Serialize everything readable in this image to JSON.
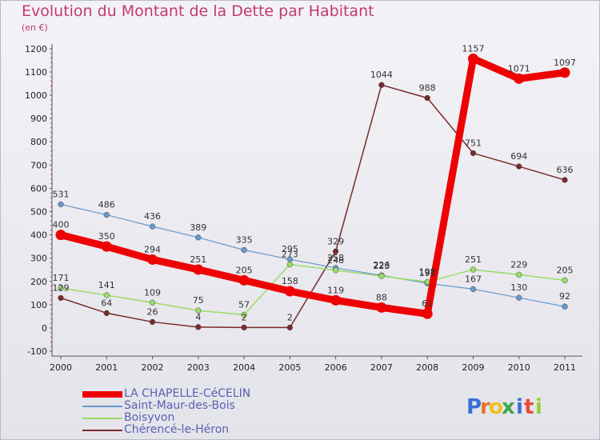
{
  "chart_data": {
    "type": "line",
    "title": "Evolution du Montant de la Dette par Habitant",
    "subtitle": "(en €)",
    "x": [
      "2000",
      "2001",
      "2002",
      "2003",
      "2004",
      "2005",
      "2006",
      "2007",
      "2008",
      "2009",
      "2010",
      "2011"
    ],
    "yticks": [
      "1200",
      "1100",
      "1000",
      "900",
      "800",
      "700",
      "600",
      "500",
      "400",
      "300",
      "200",
      "100",
      "0",
      "-100"
    ],
    "ylim": [
      -100,
      1200
    ],
    "grid": false,
    "legend_position": "bottom-left",
    "series": [
      {
        "name": "LA CHAPELLE-CéCELIN",
        "color": "#ee0000",
        "values": [
          400,
          350,
          294,
          251,
          205,
          158,
          119,
          88,
          61,
          1157,
          1071,
          1097
        ],
        "labels": [
          "400",
          "350",
          "294",
          "251",
          "205",
          "158",
          "119",
          "88",
          "61",
          "1157",
          "1071",
          "1097"
        ]
      },
      {
        "name": "Saint-Maur-des-Bois",
        "color": "#6699cc",
        "values": [
          531,
          486,
          436,
          389,
          335,
          295,
          258,
          226,
          192,
          167,
          130,
          92
        ],
        "labels": [
          "531",
          "486",
          "436",
          "389",
          "335",
          "295",
          "258",
          "226",
          "192",
          "167",
          "130",
          "92"
        ]
      },
      {
        "name": "Boisyvon",
        "color": "#99dd66",
        "values": [
          171,
          141,
          109,
          75,
          57,
          273,
          248,
          223,
          198,
          251,
          229,
          205
        ],
        "labels": [
          "171",
          "141",
          "109",
          "75",
          "57",
          "273",
          "248",
          "223",
          "198",
          "251",
          "229",
          "205"
        ]
      },
      {
        "name": "Chérencé-le-Héron",
        "color": "#7a2a2a",
        "values": [
          129,
          64,
          26,
          4,
          2,
          2,
          329,
          1044,
          988,
          751,
          694,
          636
        ],
        "labels": [
          "129",
          "64",
          "26",
          "4",
          "2",
          "2",
          "329",
          "1044",
          "988",
          "751",
          "694",
          "636"
        ]
      }
    ]
  },
  "brand": {
    "logo_text": "Proxiti",
    "letters": [
      "P",
      "r",
      "o",
      "x",
      "i",
      "t",
      "i"
    ]
  }
}
